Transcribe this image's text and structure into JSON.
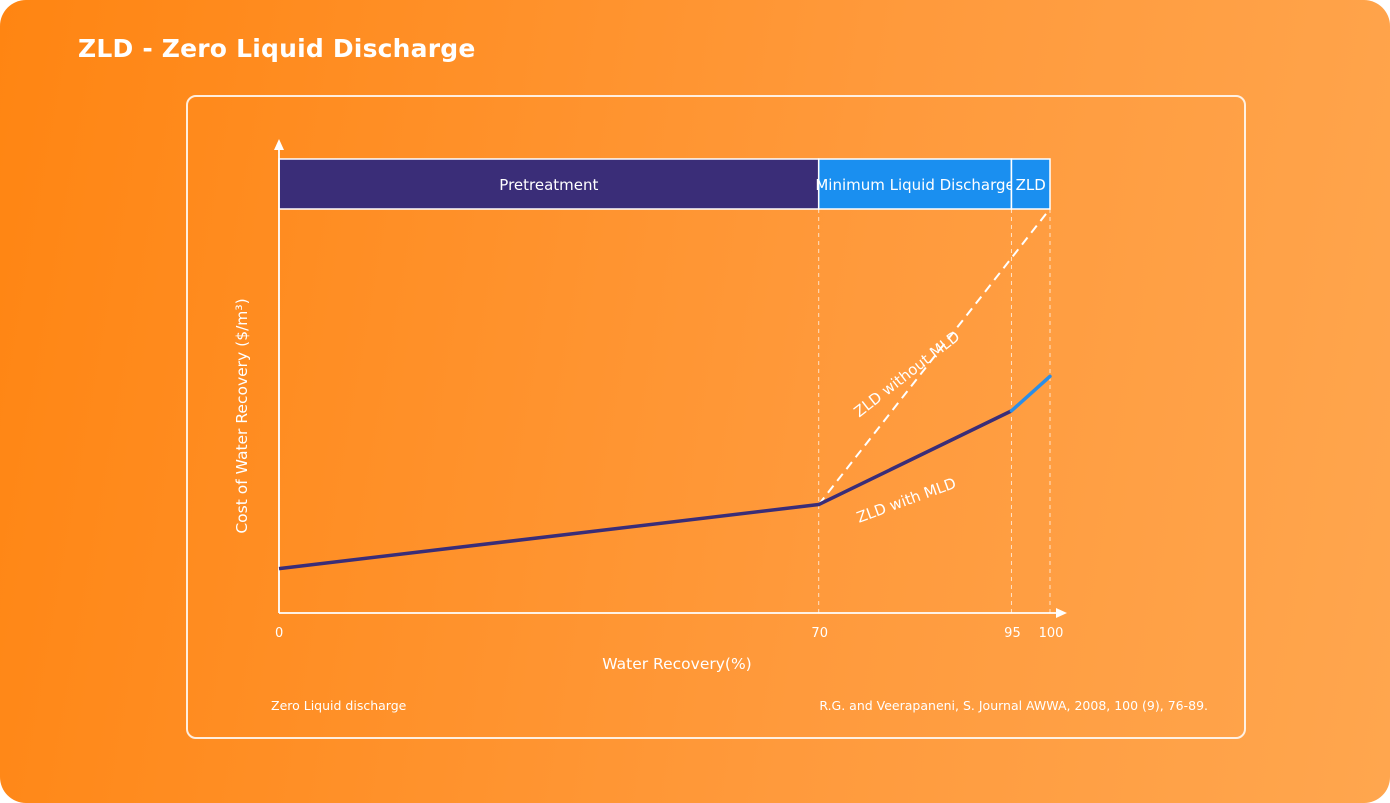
{
  "page": {
    "title": "ZLD - Zero Liquid Discharge"
  },
  "footer": {
    "caption": "Zero Liquid discharge",
    "source": "R.G. and Veerapaneni, S. Journal AWWA, 2008, 100 (9), 76-89."
  },
  "colors": {
    "pretreatment": "#3a2d78",
    "mld": "#1a8ff0",
    "zld": "#1a8ff0",
    "with_mld_line": "#3a2d78",
    "zld_segment_line": "#2a8ee8",
    "white": "#ffffff"
  },
  "chart_data": {
    "type": "line",
    "title": "",
    "xlabel": "Water Recovery(%)",
    "ylabel": "Cost of Water Recovery ($/m³)",
    "xlim": [
      0,
      100
    ],
    "ylim": [
      0,
      100
    ],
    "x_ticks": [
      0,
      70,
      95,
      100
    ],
    "y_ticks_shown": false,
    "grid": false,
    "stages": [
      {
        "name": "Pretreatment",
        "from": 0,
        "to": 70
      },
      {
        "name": "Minimum Liquid Discharge",
        "from": 70,
        "to": 95
      },
      {
        "name": "ZLD",
        "from": 95,
        "to": 100
      }
    ],
    "series": [
      {
        "name": "ZLD with MLD",
        "style": "solid",
        "points": [
          [
            0,
            9
          ],
          [
            70,
            22
          ],
          [
            95,
            41
          ],
          [
            100,
            48
          ]
        ]
      },
      {
        "name": "ZLD without MLD",
        "style": "dashed",
        "points": [
          [
            70,
            22
          ],
          [
            100,
            82
          ]
        ]
      }
    ]
  }
}
